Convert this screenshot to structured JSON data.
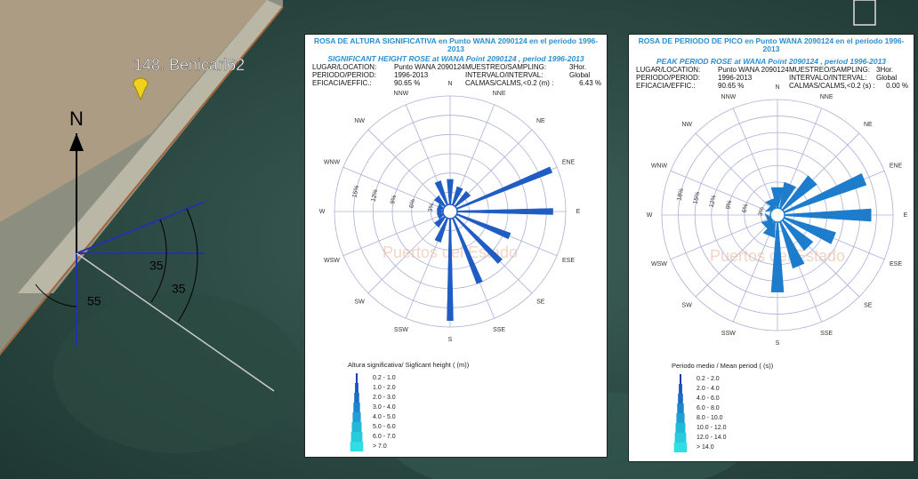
{
  "map": {
    "place_label": "148. Benicarl62",
    "north": "N",
    "angles": [
      "55",
      "35",
      "35"
    ]
  },
  "roses": [
    {
      "title": "ROSA DE ALTURA SIGNIFICATIVA en Punto WANA 2090124 en el periodo 1996-2013",
      "subtitle": "SIGNIFICANT HEIGHT ROSE at WANA Point 2090124 , period 1996-2013",
      "info": [
        [
          "LUGAR/LOCATION:",
          "Punto WANA 2090124",
          "MUESTREO/SAMPLING:",
          "3Hor."
        ],
        [
          "PERIODO/PERIOD:",
          "1996-2013",
          "INTERVALO/INTERVAL:",
          "Global"
        ],
        [
          "EFICACIA/EFFIC.:",
          "90.65 %",
          "CALMAS/CALMS,<0.2 (m) :",
          "6.43 %"
        ]
      ],
      "directions": [
        "N",
        "NNE",
        "NE",
        "ENE",
        "E",
        "ESE",
        "SE",
        "SSE",
        "S",
        "SSW",
        "SW",
        "WSW",
        "W",
        "WNW",
        "NW",
        "NNW"
      ],
      "values": [
        5,
        4,
        4,
        17,
        16,
        10,
        11,
        12,
        17,
        5,
        3,
        2,
        2,
        2,
        3,
        5
      ],
      "rlim": [
        0,
        18
      ],
      "rticks": [
        {
          "value": 3,
          "label": "3%"
        },
        {
          "value": 6,
          "label": "6%"
        },
        {
          "value": 9,
          "label": "9%"
        },
        {
          "value": 12,
          "label": "12%"
        },
        {
          "value": 15,
          "label": "15%"
        }
      ],
      "color": "#1f5cc4",
      "watermark": "Puertos del Estado",
      "legend_title": "Altura significativa/ Sigficant height  ( (m))",
      "legend": [
        "0.2 - 1.0",
        "1.0 - 2.0",
        "2.0 - 3.0",
        "3.0 - 4.0",
        "4.0 - 5.0",
        "5.0 - 6.0",
        "6.0 - 7.0",
        "> 7.0"
      ]
    },
    {
      "title": "ROSA DE PERIODO DE PICO en Punto WANA 2090124 en el periodo 1996-2013",
      "subtitle": "PEAK PERIOD ROSE at WANA Point 2090124 , period 1996-2013",
      "info": [
        [
          "LUGAR/LOCATION:",
          "Punto WANA 2090124",
          "MUESTREO/SAMPLING:",
          "3Hor."
        ],
        [
          "PERIODO/PERIOD:",
          "1996-2013",
          "INTERVALO/INTERVAL:",
          "Global"
        ],
        [
          "EFICACIA/EFFIC.:",
          "90.65 %",
          "CALMAS/CALMS,<0.2 (s) :",
          "0.00 %"
        ]
      ],
      "directions": [
        "N",
        "NNE",
        "NE",
        "ENE",
        "E",
        "ESE",
        "SE",
        "SSE",
        "S",
        "SSW",
        "SW",
        "WSW",
        "W",
        "WNW",
        "NW",
        "NNW"
      ],
      "values": [
        5,
        6,
        9,
        17,
        17,
        11,
        8,
        10,
        14,
        4,
        3,
        2,
        1,
        1,
        2,
        3
      ],
      "rlim": [
        0,
        21
      ],
      "rticks": [
        {
          "value": 3,
          "label": "3%"
        },
        {
          "value": 6,
          "label": "6%"
        },
        {
          "value": 9,
          "label": "9%"
        },
        {
          "value": 12,
          "label": "12%"
        },
        {
          "value": 15,
          "label": "15%"
        },
        {
          "value": 18,
          "label": "18%"
        }
      ],
      "color": "#1d7ccc",
      "watermark": "Puertos del Estado",
      "legend_title": "Periodo medio     / Mean period      ( (s))",
      "legend": [
        "0.2 - 2.0",
        "2.0 - 4.0",
        "4.0 - 6.0",
        "6.0 - 8.0",
        "8.0 - 10.0",
        "10.0 - 12.0",
        "12.0 - 14.0",
        "> 14.0"
      ]
    }
  ]
}
